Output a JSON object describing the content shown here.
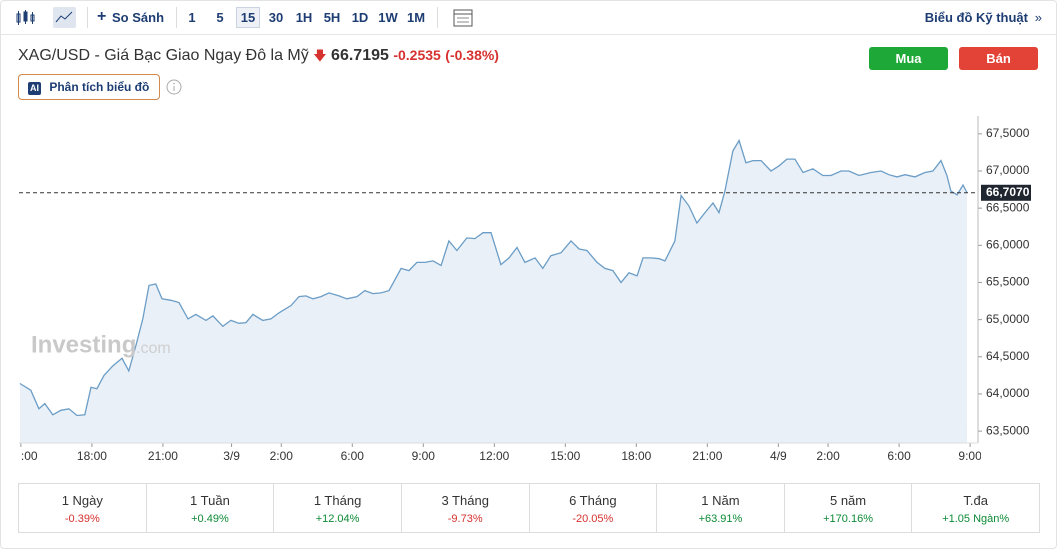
{
  "toolbar": {
    "compare": "So Sánh",
    "intervals": [
      "1",
      "5",
      "15",
      "30",
      "1H",
      "5H",
      "1D",
      "1W",
      "1M"
    ],
    "selected": "15",
    "technical": "Biểu đồ Kỹ thuật"
  },
  "header": {
    "title": "XAG/USD - Giá Bạc Giao Ngay Đô la Mỹ",
    "price": "66.7195",
    "change": "-0.2535",
    "change_pct": "(-0.38%)",
    "buy": "Mua",
    "sell": "Bán",
    "ai_badge": "AI",
    "ai_button": "Phân tích biểu đồ"
  },
  "watermark": {
    "brand": "Investing",
    "domain": ".com"
  },
  "chart_data": {
    "type": "area",
    "color": "#6b9dc6",
    "fill": "#e9f0f7",
    "x": [
      -0.04,
      0.42,
      0.76,
      1.01,
      1.35,
      1.69,
      2.03,
      2.37,
      2.7,
      2.96,
      3.21,
      3.51,
      3.89,
      4.27,
      4.56,
      4.86,
      5.15,
      5.41,
      5.7,
      5.96,
      6.34,
      6.68,
      7.06,
      7.39,
      7.82,
      8.11,
      8.53,
      8.87,
      9.21,
      9.51,
      9.8,
      10.22,
      10.56,
      10.9,
      11.41,
      11.75,
      12.04,
      12.34,
      12.68,
      13.01,
      13.44,
      13.77,
      14.2,
      14.53,
      14.87,
      15.21,
      15.55,
      16.06,
      16.39,
      16.73,
      17.07,
      17.41,
      17.75,
      18.08,
      18.42,
      18.84,
      19.18,
      19.52,
      19.86,
      20.28,
      20.62,
      20.96,
      21.29,
      21.72,
      22.05,
      22.39,
      22.82,
      23.24,
      23.58,
      23.91,
      24.34,
      24.67,
      25.01,
      25.35,
      25.69,
      26.03,
      26.28,
      26.62,
      26.96,
      27.21,
      27.63,
      27.89,
      28.22,
      28.56,
      28.9,
      29.24,
      29.49,
      29.74,
      30.08,
      30.34,
      30.63,
      30.93,
      31.27,
      31.69,
      32.03,
      32.36,
      32.7,
      33.04,
      33.46,
      33.88,
      34.22,
      34.65,
      34.98,
      35.41,
      35.91,
      36.34,
      36.67,
      37.01,
      37.35,
      37.77,
      38.19,
      38.53,
      38.87,
      39.12,
      39.29,
      39.55,
      39.8,
      39.97
    ],
    "values": [
      64.14,
      64.05,
      63.8,
      63.87,
      63.72,
      63.78,
      63.8,
      63.71,
      63.72,
      64.09,
      64.07,
      64.25,
      64.38,
      64.48,
      64.31,
      64.65,
      65.01,
      65.46,
      65.48,
      65.28,
      65.26,
      65.23,
      65.01,
      65.07,
      64.99,
      65.05,
      64.91,
      64.99,
      64.95,
      64.96,
      65.07,
      64.99,
      65.01,
      65.09,
      65.19,
      65.31,
      65.32,
      65.28,
      65.31,
      65.36,
      65.32,
      65.28,
      65.31,
      65.39,
      65.35,
      65.36,
      65.39,
      65.69,
      65.66,
      65.77,
      65.77,
      65.79,
      65.73,
      66.06,
      65.93,
      66.1,
      66.09,
      66.17,
      66.17,
      65.74,
      65.83,
      65.97,
      65.77,
      65.83,
      65.69,
      65.86,
      65.9,
      66.06,
      65.95,
      65.93,
      65.77,
      65.69,
      65.66,
      65.5,
      65.63,
      65.59,
      65.83,
      65.83,
      65.82,
      65.79,
      66.06,
      66.67,
      66.53,
      66.3,
      66.44,
      66.57,
      66.44,
      66.73,
      67.27,
      67.41,
      67.11,
      67.14,
      67.14,
      67.0,
      67.07,
      67.16,
      67.16,
      66.98,
      67.03,
      66.94,
      66.94,
      67.0,
      67.0,
      66.94,
      66.98,
      67.0,
      66.95,
      66.92,
      66.95,
      66.92,
      66.98,
      67.0,
      67.14,
      66.94,
      66.73,
      66.68,
      66.81,
      66.71
    ],
    "xlim": [
      -0.08,
      40.56
    ],
    "ylim": [
      63.34,
      67.74
    ],
    "xticks": [
      {
        "value": 0,
        "label": ":00"
      },
      {
        "value": 3,
        "label": "18:00"
      },
      {
        "value": 6,
        "label": "21:00"
      },
      {
        "value": 8.9,
        "label": "3/9"
      },
      {
        "value": 11,
        "label": "2:00"
      },
      {
        "value": 14,
        "label": "6:00"
      },
      {
        "value": 17,
        "label": "9:00"
      },
      {
        "value": 20,
        "label": "12:00"
      },
      {
        "value": 23,
        "label": "15:00"
      },
      {
        "value": 26,
        "label": "18:00"
      },
      {
        "value": 29,
        "label": "21:00"
      },
      {
        "value": 32,
        "label": "4/9"
      },
      {
        "value": 34.1,
        "label": "2:00"
      },
      {
        "value": 37.1,
        "label": "6:00"
      },
      {
        "value": 40.1,
        "label": "9:00"
      }
    ],
    "yticks": [
      {
        "value": 63.5,
        "label": "63,5000"
      },
      {
        "value": 64,
        "label": "64,0000"
      },
      {
        "value": 64.5,
        "label": "64,5000"
      },
      {
        "value": 65,
        "label": "65,0000"
      },
      {
        "value": 65.5,
        "label": "65,5000"
      },
      {
        "value": 66,
        "label": "66,0000"
      },
      {
        "value": 66.5,
        "label": "66,5000"
      },
      {
        "value": 67,
        "label": "67,0000"
      },
      {
        "value": 67.5,
        "label": "67,5000"
      }
    ],
    "last_price": {
      "value": 66.707,
      "label": "66,7070"
    }
  },
  "performance": [
    {
      "label": "1 Ngày",
      "value": "-0.39%"
    },
    {
      "label": "1 Tuần",
      "value": "+0.49%"
    },
    {
      "label": "1 Tháng",
      "value": "+12.04%"
    },
    {
      "label": "3 Tháng",
      "value": "-9.73%"
    },
    {
      "label": "6 Tháng",
      "value": "-20.05%"
    },
    {
      "label": "1 Năm",
      "value": "+63.91%"
    },
    {
      "label": "5 năm",
      "value": "+170.16%"
    },
    {
      "label": "T.đa",
      "value": "+1.05 Ngàn%"
    }
  ]
}
